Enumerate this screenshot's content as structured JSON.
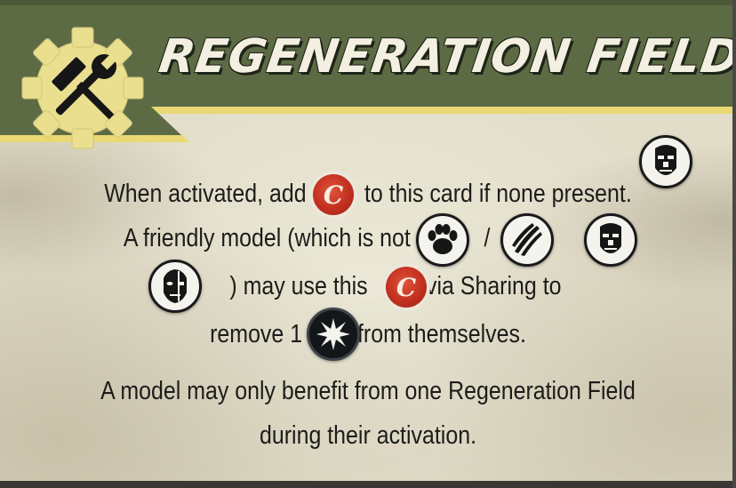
{
  "card": {
    "title": "REGENERATION FIELD",
    "colors": {
      "banner_green": "#5d6b45",
      "banner_trim": "#e9d874",
      "gear_yellow": "#e9df8f",
      "parchment": "#e2ddc9",
      "cap_red": "#c2301f",
      "text": "#1c1c1a"
    },
    "icons": {
      "header": "hammer-wrench-gear-icon",
      "cap": "bottle-cap-icon",
      "robot": "robot-face-icon",
      "creature": "paw-icon",
      "mutant": "claw-marks-icon",
      "synth": "synth-face-icon",
      "rad": "radiation-burst-icon"
    },
    "cap_letter": "C",
    "lines": {
      "l1a": "When activated, add",
      "l1b": "to this card if none present.",
      "l2a": "A friendly model (which is not a",
      "l2slash1": "/",
      "l2slash2": "/",
      "l2slash3": "/",
      "l3a": ") may use this",
      "l3b": "via Sharing to",
      "l4a": "remove 1",
      "l4b": "from themselves.",
      "l5": "A model may only benefit from one Regeneration Field",
      "l6": "during their activation."
    }
  }
}
